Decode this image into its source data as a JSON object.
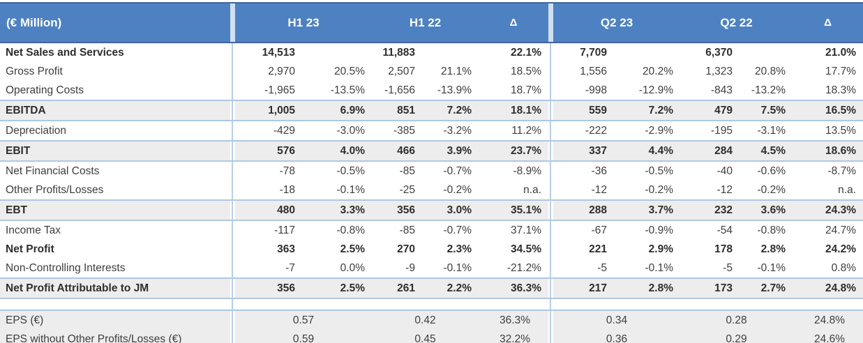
{
  "table": {
    "unit_label": "(€ Million)",
    "headers": {
      "h1_current": "H1 23",
      "h1_previous": "H1 22",
      "h1_delta": "Δ",
      "q2_current": "Q2 23",
      "q2_previous": "Q2 22",
      "q2_delta": "Δ"
    },
    "column_structure": [
      "value",
      "percent_of_sales",
      "value",
      "percent_of_sales",
      "delta"
    ],
    "rows": [
      {
        "label": "Net Sales and Services",
        "bold": true,
        "shaded": false,
        "values": [
          "14,513",
          "",
          "11,883",
          "",
          "22.1%",
          "7,709",
          "",
          "6,370",
          "",
          "21.0%"
        ]
      },
      {
        "label": "Gross Profit",
        "bold": false,
        "shaded": false,
        "values": [
          "2,970",
          "20.5%",
          "2,507",
          "21.1%",
          "18.5%",
          "1,556",
          "20.2%",
          "1,323",
          "20.8%",
          "17.7%"
        ]
      },
      {
        "label": "Operating Costs",
        "bold": false,
        "shaded": false,
        "values": [
          "-1,965",
          "-13.5%",
          "-1,656",
          "-13.9%",
          "18.7%",
          "-998",
          "-12.9%",
          "-843",
          "-13.2%",
          "18.3%"
        ]
      },
      {
        "label": "EBITDA",
        "bold": true,
        "shaded": true,
        "values": [
          "1,005",
          "6.9%",
          "851",
          "7.2%",
          "18.1%",
          "559",
          "7.2%",
          "479",
          "7.5%",
          "16.5%"
        ]
      },
      {
        "label": "Depreciation",
        "bold": false,
        "shaded": false,
        "values": [
          "-429",
          "-3.0%",
          "-385",
          "-3.2%",
          "11.2%",
          "-222",
          "-2.9%",
          "-195",
          "-3.1%",
          "13.5%"
        ]
      },
      {
        "label": "EBIT",
        "bold": true,
        "shaded": true,
        "values": [
          "576",
          "4.0%",
          "466",
          "3.9%",
          "23.7%",
          "337",
          "4.4%",
          "284",
          "4.5%",
          "18.6%"
        ]
      },
      {
        "label": "Net Financial Costs",
        "bold": false,
        "shaded": false,
        "values": [
          "-78",
          "-0.5%",
          "-85",
          "-0.7%",
          "-8.9%",
          "-36",
          "-0.5%",
          "-40",
          "-0.6%",
          "-8.7%"
        ]
      },
      {
        "label": "Other Profits/Losses",
        "bold": false,
        "shaded": false,
        "values": [
          "-18",
          "-0.1%",
          "-25",
          "-0.2%",
          "n.a.",
          "-12",
          "-0.2%",
          "-12",
          "-0.2%",
          "n.a."
        ]
      },
      {
        "label": "EBT",
        "bold": true,
        "shaded": true,
        "values": [
          "480",
          "3.3%",
          "356",
          "3.0%",
          "35.1%",
          "288",
          "3.7%",
          "232",
          "3.6%",
          "24.3%"
        ]
      },
      {
        "label": "Income Tax",
        "bold": false,
        "shaded": false,
        "values": [
          "-117",
          "-0.8%",
          "-85",
          "-0.7%",
          "37.1%",
          "-67",
          "-0.9%",
          "-54",
          "-0.8%",
          "24.7%"
        ]
      },
      {
        "label": "Net Profit",
        "bold": true,
        "shaded": false,
        "values": [
          "363",
          "2.5%",
          "270",
          "2.3%",
          "34.5%",
          "221",
          "2.9%",
          "178",
          "2.8%",
          "24.2%"
        ]
      },
      {
        "label": "Non-Controlling Interests",
        "bold": false,
        "shaded": false,
        "values": [
          "-7",
          "0.0%",
          "-9",
          "-0.1%",
          "-21.2%",
          "-5",
          "-0.1%",
          "-5",
          "-0.1%",
          "0.8%"
        ]
      },
      {
        "label": "Net Profit Attributable to JM",
        "bold": true,
        "shaded": true,
        "values": [
          "356",
          "2.5%",
          "261",
          "2.2%",
          "36.3%",
          "217",
          "2.8%",
          "173",
          "2.7%",
          "24.8%"
        ]
      }
    ],
    "eps_rows": [
      {
        "label": "EPS (€)",
        "values": [
          "0.57",
          "0.42",
          "36.3%",
          "0.34",
          "0.28",
          "24.8%"
        ]
      },
      {
        "label": "EPS without Other Profits/Losses (€)",
        "values": [
          "0.59",
          "0.45",
          "32.2%",
          "0.36",
          "0.29",
          "24.6%"
        ]
      }
    ],
    "colors": {
      "header_bg": "#4d81c2",
      "header_text": "#ffffff",
      "header_edge": "#44659b",
      "header_gap": "#cfe0f1",
      "shaded_row_bg": "#ededed",
      "grid_line": "#aec8e2",
      "vertical_divider": "#b9cfe8",
      "body_text": "#3e3e3e"
    }
  }
}
